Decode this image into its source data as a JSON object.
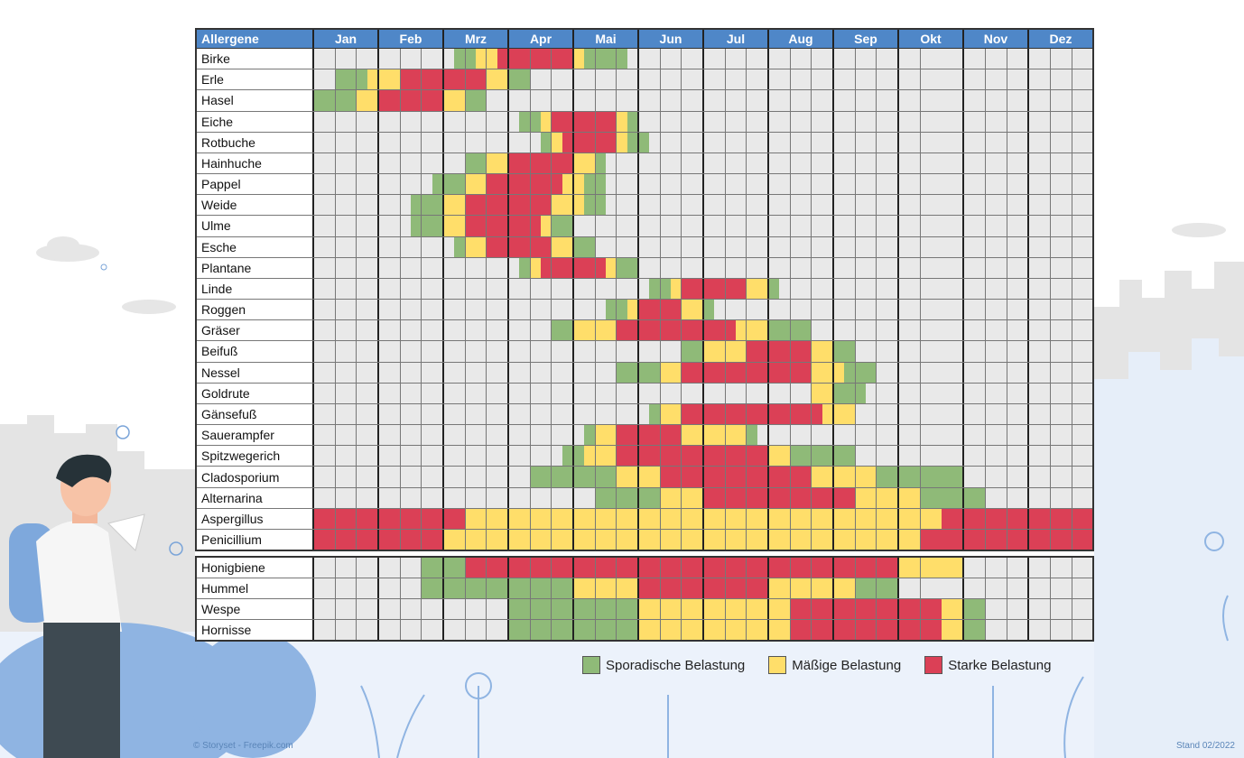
{
  "colors": {
    "header": "#4f87c8",
    "sporadic": "#8fba78",
    "moderate": "#ffde6a",
    "strong": "#db4056",
    "none": "#e9e9e9"
  },
  "chart_data": {
    "type": "heatmap",
    "legend_placement": "bottom-right",
    "row_header": "Allergene",
    "months": [
      "Jan",
      "Feb",
      "Mrz",
      "Apr",
      "Mai",
      "Jun",
      "Jul",
      "Aug",
      "Sep",
      "Okt",
      "Nov",
      "Dez"
    ],
    "legend": [
      {
        "key": "g",
        "label": "Sporadische Belastung"
      },
      {
        "key": "y",
        "label": "Mäßige Belastung"
      },
      {
        "key": "r",
        "label": "Starke Belastung"
      }
    ],
    "groups": [
      {
        "rows": [
          {
            "name": "Birke",
            "values": "...... ...... .ggyyr rrrrrr ygggg. ...... ...... ...... ...... ...... ...... ......"
          },
          {
            "name": "Erle",
            "values": "..gggy yyrrrr rrrryy gg.... ...... ...... ...... ...... ...... ...... ...... ......"
          },
          {
            "name": "Hasel",
            "values": "ggggyy rrrrrr yygg.. ...... ...... ...... ...... ...... ...... ...... ...... ......"
          },
          {
            "name": "Eiche",
            "values": "...... ...... ...... .ggyrr rrrryg ...... ...... ...... ...... ...... ...... ......"
          },
          {
            "name": "Rotbuche",
            "values": "...... ...... ...... ...gyr rrrryg g..... ...... ...... ...... ...... ...... ......"
          },
          {
            "name": "Hainhuche",
            "values": "...... ...... ..ggyy rrrrrr yyg... ...... ...... ...... ...... ...... ...... ......"
          },
          {
            "name": "Pappel",
            "values": "...... .....g ggyyrr rrrrry ygg... ...... ...... ...... ...... ...... ...... ......"
          },
          {
            "name": "Weide",
            "values": "...... ...ggg yyrrrr rrrryy ygg... ...... ...... ...... ...... ...... ...... ......"
          },
          {
            "name": "Ulme",
            "values": "...... ...ggg yyrrrr rrrygg ...... ...... ...... ...... ...... ...... ...... ......"
          },
          {
            "name": "Esche",
            "values": "...... ...... .gyyrr rrrryy gg.... ...... ...... ...... ...... ...... ...... ......"
          },
          {
            "name": "Plantane",
            "values": "...... ...... ...... .gyrrr rrrygg ...... ...... ...... ...... ...... ...... ......"
          },
          {
            "name": "Linde",
            "values": "...... ...... ...... ...... ...... .ggyrr rrrryy g..... ...... ...... ...... ......"
          },
          {
            "name": "Roggen",
            "values": "...... ...... ...... ...... ...ggy rrrryy g..... ...... ...... ...... ...... ......"
          },
          {
            "name": "Gräser",
            "values": "...... ...... ...... ....gg yyyyrr rrrrrr rrryyy gggg.. ...... ...... ...... ......"
          },
          {
            "name": "Beifuß",
            "values": "...... ...... ...... ...... ...... ....gg yyyyrr rrrryy gg.... ...... ...... ......"
          },
          {
            "name": "Nessel",
            "values": "...... ...... ...... ...... ....gg ggyyrr rrrrrr rrrryy yggg.. ...... ...... ......"
          },
          {
            "name": "Goldrute",
            "values": "...... ...... ...... ...... ...... ...... ...... ....yy ggg... ...... ...... ......"
          },
          {
            "name": "Gänsefuß",
            "values": "...... ...... ...... ...... ...... .gyyrr rrrrrr rrrrry yy.... ...... ...... ......"
          },
          {
            "name": "Sauerampfer",
            "values": "...... ...... ...... ...... .gyyrr rrrryy yyyyg. ...... ...... ...... ...... ......"
          },
          {
            "name": "Spitzwegerich",
            "values": "...... ...... ...... .....g gyyyrr rrrrrr rrrrrr yygggg gg.... ...... ...... ......"
          },
          {
            "name": "Cladosporium",
            "values": "...... ...... ...... ..gggg ggggyy yyrrrr rrrrrr rrrryy yyyygg gggggg ...... ......"
          },
          {
            "name": "Alternarina",
            "values": "...... ...... ...... ...... ..gggg ggyyyy rrrrrr rrrrrr rryyyy yygggg gg.... ......"
          },
          {
            "name": "Aspergillus",
            "values": "rrrrrr rrrrrr rryyyy yyyyyy yyyyyy yyyyyy yyyyyy yyyyyy yyyyyy yyyyrr rrrrrr rrrrrr"
          },
          {
            "name": "Penicillium",
            "values": "rrrrrr rrrrrr yyyyyy yyyyyy yyyyyy yyyyyy yyyyyy yyyyyy yyyyyy yyrrrr rrrrrr rrrrrr"
          }
        ]
      },
      {
        "rows": [
          {
            "name": "Honigbiene",
            "values": "...... ....gg ggrrrr rrrrrr rrrrrr rrrrrr rrrrrr rrrrrr rrrrrr yyyyyy ...... ......"
          },
          {
            "name": "Hummel",
            "values": "...... ....gg gggggg gggggg yyyyyy rrrrrr rrrrrr yyyyyy yygggg ...... ...... ......"
          },
          {
            "name": "Wespe",
            "values": "...... ...... ...... gggggg gggggg yyyyyy yyyyyy yyrrrr rrrrrr rrrryy gg.... ......"
          },
          {
            "name": "Hornisse",
            "values": "...... ...... ...... gggggg gggggg yyyyyy yyyyyy yyrrrr rrrrrr rrrryy gg.... ......"
          }
        ]
      }
    ]
  },
  "footer": {
    "credit": "© Storyset - Freepik.com",
    "stand": "Stand 02/2022"
  }
}
